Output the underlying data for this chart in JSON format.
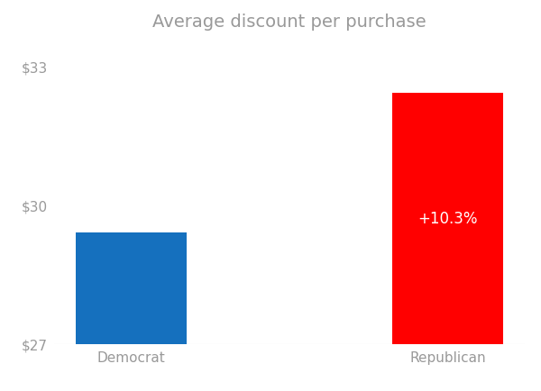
{
  "title": "Average discount per purchase",
  "categories": [
    "Democrat",
    "Republican"
  ],
  "values": [
    29.4,
    32.43
  ],
  "bar_colors": [
    "#1570BE",
    "#FF0000"
  ],
  "annotation": "+10.3%",
  "annotation_bar_index": 1,
  "ylim_min": 27,
  "ylim_max": 33.6,
  "yticks": [
    27,
    30,
    33
  ],
  "ytick_labels": [
    "$27",
    "$30",
    "$33"
  ],
  "background_color": "#ffffff",
  "title_fontsize": 14,
  "label_fontsize": 11,
  "annotation_fontsize": 12,
  "bar_width": 0.35,
  "title_color": "#999999",
  "tick_color": "#999999",
  "baseline_color": "#cccccc"
}
